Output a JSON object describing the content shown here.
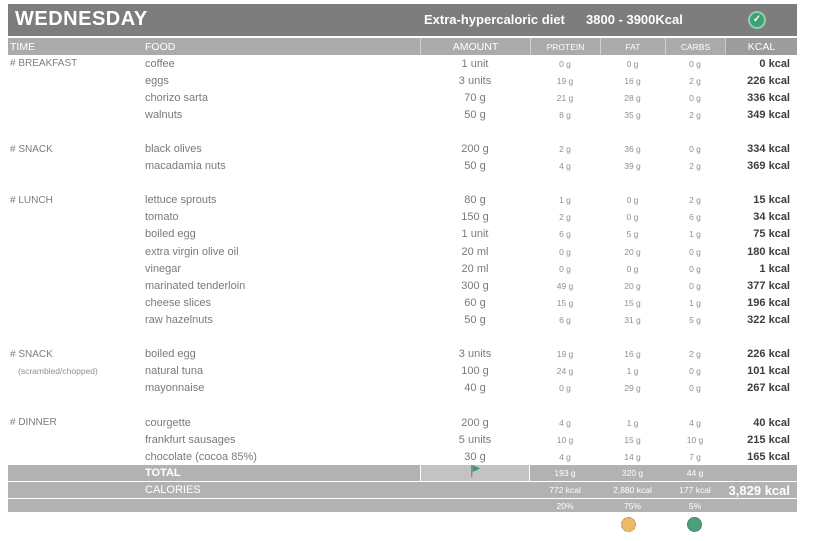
{
  "header": {
    "day": "WEDNESDAY",
    "diet_name": "Extra-hypercaloric diet",
    "kcal_range": "3800 - 3900Kcal",
    "check_icon": "check-circle"
  },
  "columns": [
    "TIME",
    "FOOD",
    "AMOUNT",
    "PROTEIN",
    "FAT",
    "CARBS",
    "KCAL"
  ],
  "sections": [
    {
      "time": "# BREAKFAST",
      "rows": [
        {
          "food": "coffee",
          "amount": "1 unit",
          "protein": "0 g",
          "fat": "0 g",
          "carbs": "0 g",
          "kcal": "0 kcal"
        },
        {
          "food": "eggs",
          "amount": "3 units",
          "protein": "19 g",
          "fat": "16 g",
          "carbs": "2 g",
          "kcal": "226 kcal"
        },
        {
          "food": "chorizo sarta",
          "amount": "70 g",
          "protein": "21 g",
          "fat": "28 g",
          "carbs": "0 g",
          "kcal": "336 kcal"
        },
        {
          "food": "walnuts",
          "amount": "50 g",
          "protein": "8 g",
          "fat": "35 g",
          "carbs": "2 g",
          "kcal": "349 kcal"
        }
      ]
    },
    {
      "time": "# SNACK",
      "rows": [
        {
          "food": "black olives",
          "amount": "200 g",
          "protein": "2 g",
          "fat": "36 g",
          "carbs": "0 g",
          "kcal": "334 kcal"
        },
        {
          "food": "macadamia nuts",
          "amount": "50 g",
          "protein": "4 g",
          "fat": "39 g",
          "carbs": "2 g",
          "kcal": "369 kcal"
        }
      ]
    },
    {
      "time": "# LUNCH",
      "rows": [
        {
          "food": "lettuce sprouts",
          "amount": "80 g",
          "protein": "1 g",
          "fat": "0 g",
          "carbs": "2 g",
          "kcal": "15 kcal"
        },
        {
          "food": "tomato",
          "amount": "150 g",
          "protein": "2 g",
          "fat": "0 g",
          "carbs": "6 g",
          "kcal": "34 kcal"
        },
        {
          "food": "boiled egg",
          "amount": "1 unit",
          "protein": "6 g",
          "fat": "5 g",
          "carbs": "1 g",
          "kcal": "75 kcal"
        },
        {
          "food": "extra virgin olive oil",
          "amount": "20 ml",
          "protein": "0 g",
          "fat": "20 g",
          "carbs": "0 g",
          "kcal": "180 kcal"
        },
        {
          "food": "vinegar",
          "amount": "20 ml",
          "protein": "0 g",
          "fat": "0 g",
          "carbs": "0 g",
          "kcal": "1 kcal"
        },
        {
          "food": "marinated tenderloin",
          "amount": "300 g",
          "protein": "49 g",
          "fat": "20 g",
          "carbs": "0 g",
          "kcal": "377 kcal"
        },
        {
          "food": "cheese slices",
          "amount": "60 g",
          "protein": "15 g",
          "fat": "15 g",
          "carbs": "1 g",
          "kcal": "196 kcal"
        },
        {
          "food": "raw hazelnuts",
          "amount": "50 g",
          "protein": "6 g",
          "fat": "31 g",
          "carbs": "5 g",
          "kcal": "322 kcal"
        }
      ]
    },
    {
      "time": "# SNACK",
      "time_note": "(scrambled/chopped)",
      "rows": [
        {
          "food": "boiled egg",
          "amount": "3 units",
          "protein": "19 g",
          "fat": "16 g",
          "carbs": "2 g",
          "kcal": "226 kcal"
        },
        {
          "food": "natural tuna",
          "amount": "100 g",
          "protein": "24 g",
          "fat": "1 g",
          "carbs": "0 g",
          "kcal": "101 kcal"
        },
        {
          "food": "mayonnaise",
          "amount": "40 g",
          "protein": "0 g",
          "fat": "29 g",
          "carbs": "0 g",
          "kcal": "267 kcal"
        }
      ]
    },
    {
      "time": "# DINNER",
      "rows": [
        {
          "food": "courgette",
          "amount": "200 g",
          "protein": "4 g",
          "fat": "1 g",
          "carbs": "4 g",
          "kcal": "40 kcal"
        },
        {
          "food": "frankfurt sausages",
          "amount": "5 units",
          "protein": "10 g",
          "fat": "15 g",
          "carbs": "10 g",
          "kcal": "215 kcal"
        },
        {
          "food": "chocolate (cocoa 85%)",
          "amount": "30 g",
          "protein": "4 g",
          "fat": "14 g",
          "carbs": "7 g",
          "kcal": "165 kcal"
        }
      ]
    }
  ],
  "footer": {
    "total_label": "TOTAL",
    "total": {
      "protein": "193 g",
      "fat": "320 g",
      "carbs": "44 g"
    },
    "calories_label": "CALORIES",
    "calories": {
      "protein": "772 kcal",
      "fat": "2,880 kcal",
      "carbs": "177 kcal",
      "total": "3,829 kcal"
    },
    "percent": {
      "protein": "20%",
      "fat": "75%",
      "carbs": "5%"
    },
    "flag_icon": "flag",
    "legend": {
      "fat_dot_color": "#e9ba67",
      "carbs_dot_color": "#4e9d7c"
    }
  },
  "colors": {
    "check_green": "#3ea173",
    "flag_green": "#3f9970"
  }
}
